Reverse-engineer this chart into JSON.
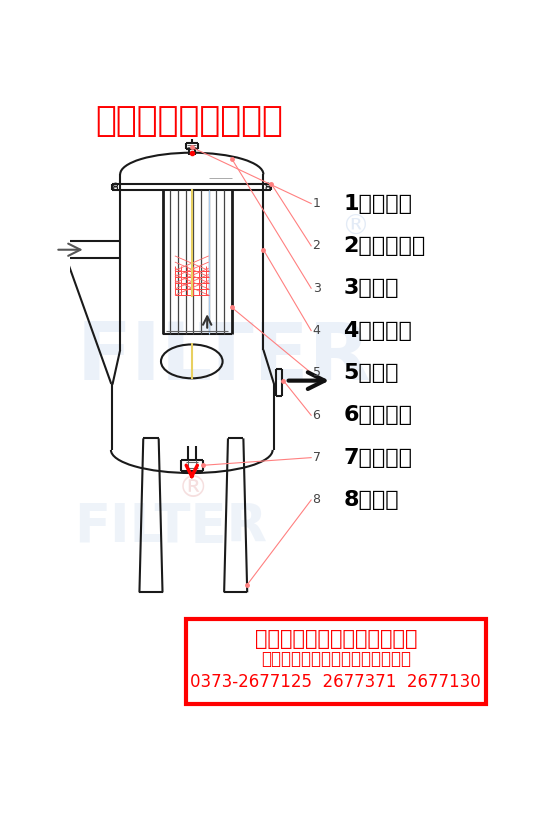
{
  "title": "风机气体精密过滤器",
  "title_color": "#FF0000",
  "background_color": "#FFFFFF",
  "labels": [
    "1、放气阀",
    "2、筒体法兰",
    "3、拉杆",
    "4、进出口",
    "5、滤芯",
    "6、压差表",
    "7、排污阀",
    "8、支腿"
  ],
  "company_line1": "新乡市迈特过滤设备有限公司",
  "company_line2": "气体精密过滤器、旋风汽水分离器",
  "company_line3": "0373-2677125  2677371  2677130",
  "company_box_color": "#FF0000",
  "company_text_color": "#FF0000",
  "watermark_text": "FILTER",
  "watermark_color": "#C8D8EE",
  "line_color": "#1A1A1A",
  "pointer_color": "#FF8080",
  "red_arrow_color": "#FF0000",
  "label_numbers": [
    "1",
    "2",
    "3",
    "4",
    "5",
    "6",
    "7",
    "8"
  ]
}
